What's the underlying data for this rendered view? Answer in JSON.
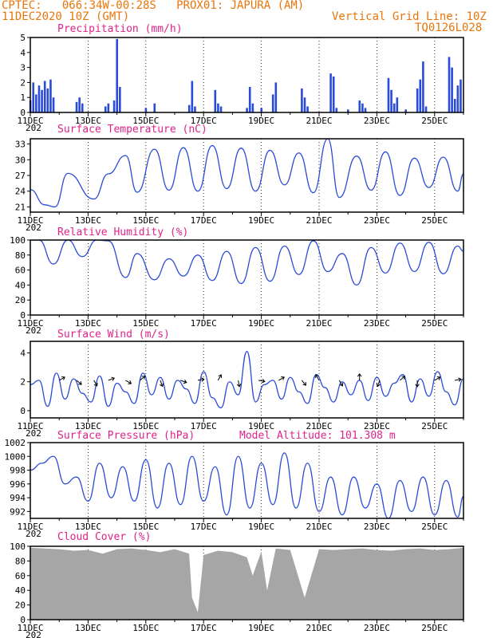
{
  "header": {
    "line1": "CPTEC:   066:34W-00:28S   PROX01: JAPURA (AM)",
    "line2": "11DEC2020 10Z (GMT)",
    "grid_note": "Vertical Grid Line: 10Z",
    "code": "TQ0126L028"
  },
  "colors": {
    "header": "#e8750a",
    "panel_title": "#e0218a",
    "series": "#2a4bd7",
    "cloud": "#a6a6a6"
  },
  "x_tick_labels": [
    "11DEC",
    "13DEC",
    "15DEC",
    "17DEC",
    "19DEC",
    "21DEC",
    "23DEC",
    "25DEC"
  ],
  "x_year_hint": "202",
  "chart_data": [
    {
      "id": "precip",
      "type": "bar",
      "title": "Precipitation (mm/h)",
      "ylim": [
        0,
        5
      ],
      "yticks": [
        "0",
        "1",
        "2",
        "3",
        "4",
        "5"
      ],
      "x_days": [
        0,
        0.1,
        0.2,
        0.3,
        0.4,
        0.5,
        0.6,
        0.7,
        0.8,
        1.6,
        1.7,
        1.8,
        2.6,
        2.7,
        2.9,
        3.0,
        3.1,
        4.0,
        4.3,
        5.5,
        5.6,
        5.7,
        6.4,
        6.5,
        6.6,
        7.5,
        7.6,
        7.7,
        8.0,
        8.4,
        8.5,
        9.4,
        9.5,
        9.6,
        10.4,
        10.5,
        10.6,
        11.0,
        11.4,
        11.5,
        11.6,
        12.4,
        12.5,
        12.6,
        12.7,
        13.0,
        13.4,
        13.5,
        13.6,
        13.7,
        14.5,
        14.6,
        14.7,
        14.8,
        14.9
      ],
      "values": [
        0.8,
        2.0,
        1.2,
        1.8,
        1.5,
        2.1,
        1.6,
        2.2,
        1.0,
        0.7,
        1.0,
        0.6,
        0.4,
        0.6,
        0.8,
        4.9,
        1.7,
        0.3,
        0.6,
        0.5,
        2.1,
        0.4,
        1.5,
        0.6,
        0.4,
        0.3,
        1.7,
        0.6,
        0.3,
        1.2,
        2.0,
        1.6,
        1.0,
        0.4,
        2.6,
        2.4,
        0.3,
        0.2,
        0.8,
        0.6,
        0.3,
        2.3,
        1.5,
        0.6,
        1.0,
        0.2,
        1.6,
        2.2,
        3.4,
        0.4,
        3.7,
        3.0,
        0.9,
        1.8,
        2.2
      ]
    },
    {
      "id": "temp",
      "type": "line",
      "title": "Surface Temperature (nC)",
      "ylim": [
        20,
        34
      ],
      "yticks": [
        "21",
        "24",
        "27",
        "30",
        "33"
      ],
      "ytick_values": [
        21,
        24,
        27,
        30,
        33
      ],
      "x_days": [
        0,
        0.5,
        0.85,
        1.3,
        2.2,
        2.7,
        3.3,
        3.7,
        4.3,
        4.8,
        5.3,
        5.8,
        6.3,
        6.8,
        7.3,
        7.8,
        8.3,
        8.8,
        9.3,
        9.8,
        10.3,
        10.7,
        11.3,
        11.8,
        12.3,
        12.8,
        13.3,
        13.8,
        14.3,
        14.8,
        15.0
      ],
      "values": [
        24.3,
        21.4,
        21.0,
        27.4,
        22.5,
        27.3,
        30.8,
        23.8,
        32.0,
        24.2,
        32.3,
        24.0,
        32.7,
        24.5,
        32.2,
        24.0,
        31.8,
        25.2,
        31.3,
        23.7,
        34.0,
        22.8,
        30.7,
        24.2,
        31.5,
        23.2,
        30.3,
        24.7,
        30.5,
        24.0,
        27.3
      ]
    },
    {
      "id": "humidity",
      "type": "line",
      "title": "Relative Humidity (%)",
      "ylim": [
        0,
        100
      ],
      "yticks": [
        "0",
        "20",
        "40",
        "60",
        "80",
        "100"
      ],
      "ytick_values": [
        0,
        20,
        40,
        60,
        80,
        100
      ],
      "x_days": [
        0,
        0.3,
        0.8,
        1.3,
        1.8,
        2.3,
        2.7,
        3.3,
        3.7,
        4.3,
        4.8,
        5.3,
        5.8,
        6.3,
        6.8,
        7.3,
        7.8,
        8.3,
        8.8,
        9.3,
        9.8,
        10.3,
        10.8,
        11.3,
        11.8,
        12.3,
        12.8,
        13.3,
        13.8,
        14.3,
        14.8,
        15.0
      ],
      "values": [
        100,
        100,
        68,
        100,
        78,
        100,
        99,
        50,
        82,
        47,
        75,
        52,
        80,
        46,
        85,
        42,
        90,
        45,
        92,
        54,
        99,
        58,
        82,
        40,
        90,
        56,
        96,
        58,
        97,
        55,
        92,
        85
      ]
    },
    {
      "id": "wind",
      "type": "line",
      "title": "Surface Wind (m/s)",
      "ylim": [
        -0.5,
        4.8
      ],
      "yticks": [
        "0",
        "2",
        "4"
      ],
      "ytick_values": [
        0,
        2,
        4
      ],
      "x_days": [
        0,
        0.3,
        0.6,
        0.9,
        1.2,
        1.5,
        1.8,
        2.1,
        2.4,
        2.7,
        3.0,
        3.3,
        3.6,
        3.9,
        4.2,
        4.5,
        4.8,
        5.1,
        5.4,
        5.7,
        6.0,
        6.3,
        6.6,
        6.9,
        7.2,
        7.5,
        7.8,
        8.1,
        8.4,
        8.7,
        9.0,
        9.3,
        9.6,
        9.9,
        10.2,
        10.5,
        10.8,
        11.1,
        11.4,
        11.7,
        12.0,
        12.3,
        12.6,
        12.9,
        13.2,
        13.5,
        13.8,
        14.1,
        14.4,
        14.7,
        15.0
      ],
      "values": [
        1.8,
        2.1,
        0.3,
        2.6,
        0.8,
        2.2,
        1.2,
        0.6,
        2.4,
        0.3,
        1.9,
        1.3,
        0.5,
        2.6,
        1.1,
        2.3,
        0.8,
        2.1,
        1.5,
        0.5,
        2.7,
        0.9,
        0.2,
        2.0,
        1.1,
        4.1,
        0.6,
        1.8,
        2.1,
        0.8,
        2.3,
        1.3,
        0.5,
        2.5,
        1.6,
        0.6,
        2.0,
        1.1,
        2.1,
        0.7,
        2.3,
        1.0,
        1.9,
        2.5,
        0.6,
        2.2,
        1.0,
        2.7,
        1.3,
        0.4,
        2.2
      ]
    },
    {
      "id": "pressure",
      "type": "line",
      "title": "Surface Pressure (hPa)",
      "annotation": "Model Altitude: 101.308 m",
      "ylim": [
        991,
        1002
      ],
      "yticks": [
        "992",
        "994",
        "996",
        "998",
        "1000",
        "1002"
      ],
      "ytick_values": [
        992,
        994,
        996,
        998,
        1000,
        1002
      ],
      "x_days": [
        0,
        0.4,
        0.8,
        1.2,
        1.6,
        2.0,
        2.4,
        2.8,
        3.2,
        3.6,
        4.0,
        4.4,
        4.8,
        5.2,
        5.6,
        6.0,
        6.4,
        6.8,
        7.2,
        7.6,
        8.0,
        8.4,
        8.8,
        9.2,
        9.6,
        10.0,
        10.4,
        10.8,
        11.2,
        11.6,
        12.0,
        12.4,
        12.8,
        13.2,
        13.6,
        14.0,
        14.4,
        14.8,
        15.0
      ],
      "values": [
        998,
        999,
        1000,
        996,
        997,
        993.5,
        999,
        994,
        998.5,
        993.5,
        999.5,
        992.5,
        999,
        993,
        1000,
        993.5,
        998.5,
        991.5,
        1000,
        992.5,
        999,
        993,
        1000.5,
        992.5,
        999,
        992,
        997,
        991.5,
        997,
        992.5,
        996,
        991,
        996.5,
        992,
        997,
        991.5,
        996.5,
        991.2,
        994.2
      ]
    },
    {
      "id": "cloud",
      "type": "area",
      "title": "Cloud Cover (%)",
      "ylim": [
        0,
        100
      ],
      "yticks": [
        "0",
        "20",
        "40",
        "60",
        "80",
        "100"
      ],
      "ytick_values": [
        0,
        20,
        40,
        60,
        80,
        100
      ],
      "x_days": [
        0,
        0.5,
        1.0,
        1.5,
        2.0,
        2.5,
        3.0,
        3.5,
        4.0,
        4.5,
        5.0,
        5.5,
        5.6,
        5.8,
        6.0,
        6.5,
        7.0,
        7.5,
        7.7,
        8.0,
        8.2,
        8.5,
        9.0,
        9.5,
        10.0,
        10.5,
        11.0,
        11.5,
        12.0,
        12.5,
        13.0,
        13.5,
        14.0,
        14.5,
        15.0
      ],
      "values": [
        98,
        97,
        96,
        94,
        95,
        90,
        96,
        97,
        95,
        92,
        96,
        90,
        30,
        10,
        88,
        94,
        92,
        85,
        60,
        93,
        40,
        97,
        95,
        30,
        96,
        95,
        96,
        97,
        95,
        94,
        96,
        97,
        95,
        96,
        98
      ]
    }
  ]
}
